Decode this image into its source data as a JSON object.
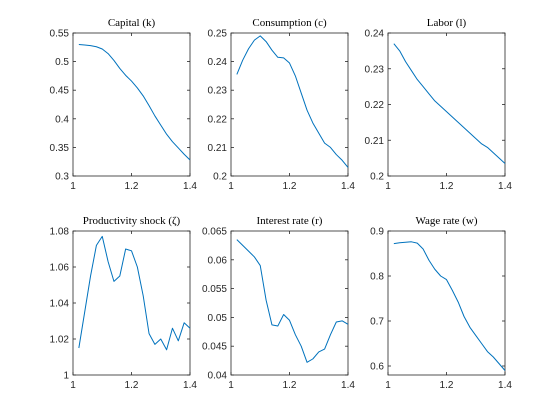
{
  "chart_data": [
    {
      "type": "line",
      "title": "Capital (k)",
      "xlim": [
        1,
        1.4
      ],
      "ylim": [
        0.3,
        0.55
      ],
      "xticks": [
        1,
        1.2,
        1.4
      ],
      "xticklabels": [
        "1",
        "1.2",
        "1.4"
      ],
      "yticks": [
        0.3,
        0.35,
        0.4,
        0.45,
        0.5,
        0.55
      ],
      "yticklabels": [
        "0.3",
        "0.35",
        "0.4",
        "0.45",
        "0.5",
        "0.55"
      ],
      "series": [
        {
          "color": "#0072bd",
          "x": [
            1.02,
            1.04,
            1.06,
            1.08,
            1.1,
            1.12,
            1.14,
            1.16,
            1.18,
            1.2,
            1.22,
            1.24,
            1.26,
            1.28,
            1.3,
            1.32,
            1.34,
            1.36,
            1.38,
            1.4
          ],
          "y": [
            0.53,
            0.529,
            0.528,
            0.526,
            0.522,
            0.514,
            0.502,
            0.488,
            0.476,
            0.466,
            0.454,
            0.44,
            0.423,
            0.405,
            0.389,
            0.373,
            0.36,
            0.349,
            0.338,
            0.328
          ]
        }
      ]
    },
    {
      "type": "line",
      "title": "Consumption (c)",
      "xlim": [
        1,
        1.4
      ],
      "ylim": [
        0.2,
        0.25
      ],
      "xticks": [
        1,
        1.2,
        1.4
      ],
      "xticklabels": [
        "1",
        "1.2",
        "1.4"
      ],
      "yticks": [
        0.2,
        0.21,
        0.22,
        0.23,
        0.24,
        0.25
      ],
      "yticklabels": [
        "0.2",
        "0.21",
        "0.22",
        "0.23",
        "0.24",
        "0.25"
      ],
      "series": [
        {
          "color": "#0072bd",
          "x": [
            1.02,
            1.04,
            1.06,
            1.08,
            1.1,
            1.12,
            1.14,
            1.16,
            1.18,
            1.2,
            1.22,
            1.24,
            1.26,
            1.28,
            1.3,
            1.32,
            1.34,
            1.36,
            1.38,
            1.4
          ],
          "y": [
            0.2355,
            0.2405,
            0.2445,
            0.2475,
            0.249,
            0.247,
            0.244,
            0.2415,
            0.2413,
            0.2395,
            0.235,
            0.229,
            0.223,
            0.2185,
            0.215,
            0.2115,
            0.21,
            0.2075,
            0.2055,
            0.203
          ]
        }
      ]
    },
    {
      "type": "line",
      "title": "Labor (l)",
      "xlim": [
        1,
        1.4
      ],
      "ylim": [
        0.2,
        0.24
      ],
      "xticks": [
        1,
        1.2,
        1.4
      ],
      "xticklabels": [
        "1",
        "1.2",
        "1.4"
      ],
      "yticks": [
        0.2,
        0.21,
        0.22,
        0.23,
        0.24
      ],
      "yticklabels": [
        "0.2",
        "0.21",
        "0.22",
        "0.23",
        "0.24"
      ],
      "series": [
        {
          "color": "#0072bd",
          "x": [
            1.02,
            1.04,
            1.06,
            1.08,
            1.1,
            1.12,
            1.14,
            1.16,
            1.18,
            1.2,
            1.22,
            1.24,
            1.26,
            1.28,
            1.3,
            1.32,
            1.34,
            1.36,
            1.38,
            1.4
          ],
          "y": [
            0.237,
            0.235,
            0.232,
            0.2295,
            0.227,
            0.225,
            0.223,
            0.221,
            0.2195,
            0.218,
            0.2165,
            0.215,
            0.2135,
            0.212,
            0.2105,
            0.209,
            0.208,
            0.2065,
            0.205,
            0.2035
          ]
        }
      ]
    },
    {
      "type": "line",
      "title": "Productivity shock (ζ)",
      "xlim": [
        1,
        1.4
      ],
      "ylim": [
        1,
        1.08
      ],
      "xticks": [
        1,
        1.2,
        1.4
      ],
      "xticklabels": [
        "1",
        "1.2",
        "1.4"
      ],
      "yticks": [
        1,
        1.02,
        1.04,
        1.06,
        1.08
      ],
      "yticklabels": [
        "1",
        "1.02",
        "1.04",
        "1.06",
        "1.08"
      ],
      "series": [
        {
          "color": "#0072bd",
          "x": [
            1.02,
            1.04,
            1.06,
            1.08,
            1.1,
            1.12,
            1.14,
            1.16,
            1.18,
            1.2,
            1.22,
            1.24,
            1.26,
            1.28,
            1.3,
            1.32,
            1.34,
            1.36,
            1.38,
            1.4
          ],
          "y": [
            1.015,
            1.035,
            1.055,
            1.072,
            1.077,
            1.063,
            1.052,
            1.055,
            1.07,
            1.069,
            1.06,
            1.044,
            1.023,
            1.017,
            1.02,
            1.014,
            1.026,
            1.019,
            1.029,
            1.026
          ]
        }
      ]
    },
    {
      "type": "line",
      "title": "Interest rate (r)",
      "xlim": [
        1,
        1.4
      ],
      "ylim": [
        0.04,
        0.065
      ],
      "xticks": [
        1,
        1.2,
        1.4
      ],
      "xticklabels": [
        "1",
        "1.2",
        "1.4"
      ],
      "yticks": [
        0.04,
        0.045,
        0.05,
        0.055,
        0.06,
        0.065
      ],
      "yticklabels": [
        "0.04",
        "0.045",
        "0.05",
        "0.055",
        "0.06",
        "0.065"
      ],
      "series": [
        {
          "color": "#0072bd",
          "x": [
            1.02,
            1.04,
            1.06,
            1.08,
            1.1,
            1.12,
            1.14,
            1.16,
            1.18,
            1.2,
            1.22,
            1.24,
            1.26,
            1.28,
            1.3,
            1.32,
            1.34,
            1.36,
            1.38,
            1.4
          ],
          "y": [
            0.0635,
            0.0625,
            0.0615,
            0.0605,
            0.059,
            0.053,
            0.0487,
            0.0485,
            0.0505,
            0.0495,
            0.047,
            0.045,
            0.0422,
            0.0428,
            0.044,
            0.0445,
            0.047,
            0.0492,
            0.0494,
            0.0488
          ]
        }
      ]
    },
    {
      "type": "line",
      "title": "Wage rate (w)",
      "xlim": [
        1,
        1.4
      ],
      "ylim": [
        0.58,
        0.9
      ],
      "xticks": [
        1,
        1.2,
        1.4
      ],
      "xticklabels": [
        "1",
        "1.2",
        "1.4"
      ],
      "yticks": [
        0.6,
        0.7,
        0.8,
        0.9
      ],
      "yticklabels": [
        "0.6",
        "0.7",
        "0.8",
        "0.9"
      ],
      "series": [
        {
          "color": "#0072bd",
          "x": [
            1.02,
            1.04,
            1.06,
            1.08,
            1.1,
            1.12,
            1.14,
            1.16,
            1.18,
            1.2,
            1.22,
            1.24,
            1.26,
            1.28,
            1.3,
            1.32,
            1.34,
            1.36,
            1.38,
            1.4
          ],
          "y": [
            0.872,
            0.874,
            0.875,
            0.876,
            0.873,
            0.86,
            0.835,
            0.815,
            0.8,
            0.792,
            0.768,
            0.742,
            0.71,
            0.686,
            0.668,
            0.65,
            0.632,
            0.62,
            0.605,
            0.59
          ]
        }
      ]
    }
  ]
}
